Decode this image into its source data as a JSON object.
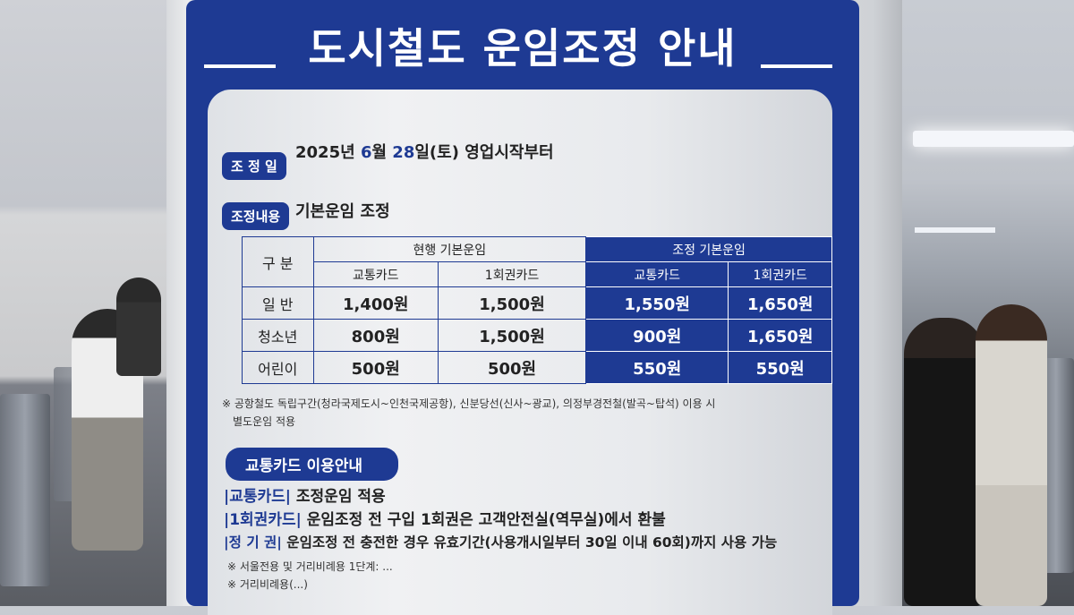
{
  "poster": {
    "title": "도시철도 운임조정 안내",
    "date_label": "조 정 일",
    "date_prefix": "2025년 ",
    "month": "6",
    "month_suffix": "월 ",
    "day": "28",
    "date_suffix": "일(토) 영업시작부터",
    "content_label": "조정내용",
    "content_value": "기본운임 조정",
    "table": {
      "col_category": "구 분",
      "group_current": "현행 기본운임",
      "group_adjusted": "조정 기본운임",
      "sub_headers": [
        "교통카드",
        "1회권카드",
        "교통카드",
        "1회권카드"
      ],
      "rows": [
        {
          "label": "일 반",
          "values": [
            "1,400원",
            "1,500원",
            "1,550원",
            "1,650원"
          ]
        },
        {
          "label": "청소년",
          "values": [
            "800원",
            "1,500원",
            "900원",
            "1,650원"
          ]
        },
        {
          "label": "어린이",
          "values": [
            "500원",
            "500원",
            "550원",
            "550원"
          ]
        }
      ]
    },
    "footnote_line1": "※ 공항철도 독립구간(청라국제도시~인천국제공항), 신분당선(신사~광교), 의정부경전철(발곡~탑석) 이용 시",
    "footnote_line2": "별도운임 적용",
    "section2_title": "교통카드 이용안내",
    "items": [
      {
        "tag": "|교통카드|",
        "text": " 조정운임 적용"
      },
      {
        "tag": "|1회권카드|",
        "text": " 운임조정 전 구입 1회권은 고객안전실(역무실)에서 환불"
      },
      {
        "tag": "|정 기 권|",
        "text": " 운임조정 전 충전한 경우 유효기간(사용개시일부터 30일 이내 60회)까지 사용 가능"
      }
    ],
    "note_partial1": "※ 서울전용 및 거리비례용 1단계: ...",
    "note_partial2": "※ 거리비례용(...)"
  },
  "colors": {
    "poster_blue": "#1e3a93",
    "paper": "#e8eaed"
  }
}
